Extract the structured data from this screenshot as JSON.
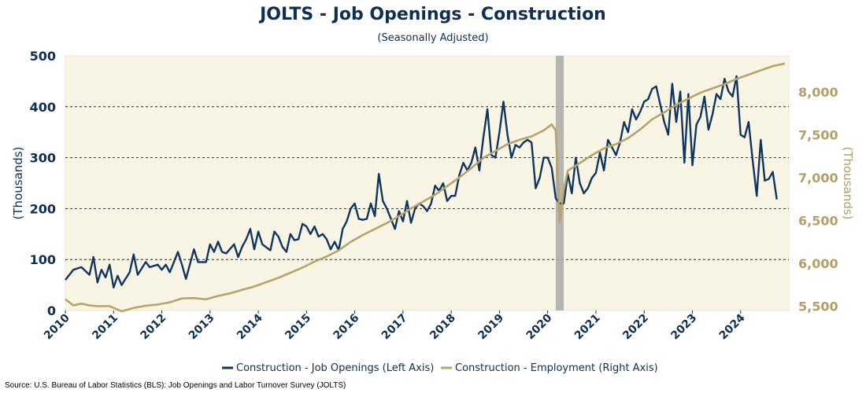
{
  "header": {
    "title": "JOLTS - Job Openings - Construction",
    "subtitle": "(Seasonally Adjusted)"
  },
  "footer": {
    "source": "Source: U.S. Bureau of Labor Statistics (BLS): Job Openings and Labor Turnover Survey (JOLTS)"
  },
  "colors": {
    "openings": "#0f3560",
    "employment": "#b8a36c",
    "plot_background": "#f8f5e4",
    "recession_band": "#a9a9a9",
    "left_axis_text": "#0f2f52",
    "right_axis_text": "#b59f68"
  },
  "chart_data": {
    "type": "line",
    "title": "JOLTS - Job Openings - Construction",
    "subtitle": "(Seasonally Adjusted)",
    "ylabel_left": "(Thousands)",
    "ylabel_right": "(Thousands)",
    "ylim_left": [
      0,
      500
    ],
    "ylim_right": [
      5450,
      8420
    ],
    "x_range": [
      "2010-01",
      "2025-01"
    ],
    "left_ticks": [
      "0",
      "100",
      "200",
      "300",
      "400",
      "500"
    ],
    "right_ticks": [
      "5,500",
      "6,000",
      "6,500",
      "7,000",
      "7,500",
      "8,000"
    ],
    "x_ticks": [
      "2010",
      "2011",
      "2012",
      "2013",
      "2014",
      "2015",
      "2016",
      "2017",
      "2018",
      "2019",
      "2020",
      "2021",
      "2022",
      "2023",
      "2024"
    ],
    "gridlines": "horizontal dashed at left-axis ticks",
    "legend_position": "bottom-center",
    "recession_shading": {
      "start": "2020-03",
      "end": "2020-05"
    },
    "series": [
      {
        "name": "Construction - Job Openings (Left Axis)",
        "axis": "left",
        "points": [
          [
            "2010-01",
            60
          ],
          [
            "2010-03",
            80
          ],
          [
            "2010-05",
            85
          ],
          [
            "2010-07",
            70
          ],
          [
            "2010-08",
            105
          ],
          [
            "2010-09",
            55
          ],
          [
            "2010-10",
            80
          ],
          [
            "2010-11",
            65
          ],
          [
            "2010-12",
            90
          ],
          [
            "2011-01",
            45
          ],
          [
            "2011-02",
            68
          ],
          [
            "2011-03",
            50
          ],
          [
            "2011-05",
            75
          ],
          [
            "2011-06",
            110
          ],
          [
            "2011-07",
            70
          ],
          [
            "2011-09",
            95
          ],
          [
            "2011-10",
            85
          ],
          [
            "2011-12",
            90
          ],
          [
            "2012-01",
            80
          ],
          [
            "2012-02",
            90
          ],
          [
            "2012-03",
            75
          ],
          [
            "2012-05",
            115
          ],
          [
            "2012-06",
            90
          ],
          [
            "2012-07",
            62
          ],
          [
            "2012-09",
            120
          ],
          [
            "2012-10",
            95
          ],
          [
            "2012-12",
            95
          ],
          [
            "2013-01",
            130
          ],
          [
            "2013-02",
            115
          ],
          [
            "2013-03",
            135
          ],
          [
            "2013-04",
            115
          ],
          [
            "2013-05",
            112
          ],
          [
            "2013-07",
            130
          ],
          [
            "2013-08",
            105
          ],
          [
            "2013-09",
            125
          ],
          [
            "2013-10",
            140
          ],
          [
            "2013-11",
            160
          ],
          [
            "2013-12",
            120
          ],
          [
            "2014-01",
            155
          ],
          [
            "2014-02",
            130
          ],
          [
            "2014-04",
            118
          ],
          [
            "2014-05",
            155
          ],
          [
            "2014-06",
            145
          ],
          [
            "2014-07",
            125
          ],
          [
            "2014-08",
            115
          ],
          [
            "2014-09",
            150
          ],
          [
            "2014-10",
            138
          ],
          [
            "2014-11",
            140
          ],
          [
            "2014-12",
            170
          ],
          [
            "2015-01",
            165
          ],
          [
            "2015-02",
            150
          ],
          [
            "2015-03",
            165
          ],
          [
            "2015-04",
            145
          ],
          [
            "2015-05",
            150
          ],
          [
            "2015-06",
            140
          ],
          [
            "2015-07",
            120
          ],
          [
            "2015-08",
            135
          ],
          [
            "2015-09",
            118
          ],
          [
            "2015-10",
            160
          ],
          [
            "2015-11",
            175
          ],
          [
            "2015-12",
            200
          ],
          [
            "2016-01",
            210
          ],
          [
            "2016-02",
            180
          ],
          [
            "2016-03",
            178
          ],
          [
            "2016-04",
            180
          ],
          [
            "2016-05",
            210
          ],
          [
            "2016-06",
            185
          ],
          [
            "2016-07",
            268
          ],
          [
            "2016-08",
            215
          ],
          [
            "2016-09",
            200
          ],
          [
            "2016-10",
            180
          ],
          [
            "2016-11",
            160
          ],
          [
            "2016-12",
            195
          ],
          [
            "2017-01",
            175
          ],
          [
            "2017-02",
            215
          ],
          [
            "2017-03",
            172
          ],
          [
            "2017-04",
            200
          ],
          [
            "2017-05",
            210
          ],
          [
            "2017-06",
            205
          ],
          [
            "2017-07",
            195
          ],
          [
            "2017-08",
            210
          ],
          [
            "2017-09",
            245
          ],
          [
            "2017-10",
            235
          ],
          [
            "2017-11",
            250
          ],
          [
            "2017-12",
            215
          ],
          [
            "2018-01",
            225
          ],
          [
            "2018-02",
            225
          ],
          [
            "2018-03",
            265
          ],
          [
            "2018-04",
            290
          ],
          [
            "2018-05",
            275
          ],
          [
            "2018-06",
            290
          ],
          [
            "2018-07",
            320
          ],
          [
            "2018-08",
            275
          ],
          [
            "2018-09",
            340
          ],
          [
            "2018-10",
            395
          ],
          [
            "2018-11",
            305
          ],
          [
            "2018-12",
            300
          ],
          [
            "2019-01",
            350
          ],
          [
            "2019-02",
            410
          ],
          [
            "2019-03",
            345
          ],
          [
            "2019-04",
            300
          ],
          [
            "2019-05",
            325
          ],
          [
            "2019-06",
            320
          ],
          [
            "2019-07",
            330
          ],
          [
            "2019-08",
            335
          ],
          [
            "2019-09",
            330
          ],
          [
            "2019-10",
            240
          ],
          [
            "2019-11",
            260
          ],
          [
            "2019-12",
            300
          ],
          [
            "2020-01",
            300
          ],
          [
            "2020-02",
            280
          ],
          [
            "2020-03",
            220
          ],
          [
            "2020-04",
            210
          ],
          [
            "2020-05",
            210
          ],
          [
            "2020-06",
            268
          ],
          [
            "2020-07",
            230
          ],
          [
            "2020-08",
            300
          ],
          [
            "2020-09",
            250
          ],
          [
            "2020-10",
            230
          ],
          [
            "2020-11",
            240
          ],
          [
            "2020-12",
            260
          ],
          [
            "2021-01",
            270
          ],
          [
            "2021-02",
            310
          ],
          [
            "2021-03",
            275
          ],
          [
            "2021-04",
            335
          ],
          [
            "2021-05",
            320
          ],
          [
            "2021-06",
            305
          ],
          [
            "2021-07",
            330
          ],
          [
            "2021-08",
            370
          ],
          [
            "2021-09",
            350
          ],
          [
            "2021-10",
            395
          ],
          [
            "2021-11",
            375
          ],
          [
            "2021-12",
            390
          ],
          [
            "2022-01",
            410
          ],
          [
            "2022-02",
            415
          ],
          [
            "2022-03",
            435
          ],
          [
            "2022-04",
            440
          ],
          [
            "2022-05",
            405
          ],
          [
            "2022-06",
            370
          ],
          [
            "2022-07",
            345
          ],
          [
            "2022-08",
            445
          ],
          [
            "2022-09",
            370
          ],
          [
            "2022-10",
            430
          ],
          [
            "2022-11",
            290
          ],
          [
            "2022-12",
            425
          ],
          [
            "2023-01",
            285
          ],
          [
            "2023-02",
            365
          ],
          [
            "2023-03",
            380
          ],
          [
            "2023-04",
            420
          ],
          [
            "2023-05",
            355
          ],
          [
            "2023-06",
            385
          ],
          [
            "2023-07",
            425
          ],
          [
            "2023-08",
            415
          ],
          [
            "2023-09",
            455
          ],
          [
            "2023-10",
            430
          ],
          [
            "2023-11",
            420
          ],
          [
            "2023-12",
            460
          ],
          [
            "2024-01",
            345
          ],
          [
            "2024-02",
            340
          ],
          [
            "2024-03",
            370
          ],
          [
            "2024-04",
            295
          ],
          [
            "2024-05",
            225
          ],
          [
            "2024-06",
            335
          ],
          [
            "2024-07",
            255
          ],
          [
            "2024-08",
            258
          ],
          [
            "2024-09",
            272
          ],
          [
            "2024-10",
            218
          ]
        ]
      },
      {
        "name": "Construction - Employment (Right Axis)",
        "axis": "right",
        "points": [
          [
            "2010-01",
            5580
          ],
          [
            "2010-03",
            5510
          ],
          [
            "2010-05",
            5530
          ],
          [
            "2010-07",
            5510
          ],
          [
            "2010-09",
            5500
          ],
          [
            "2010-12",
            5500
          ],
          [
            "2011-01",
            5480
          ],
          [
            "2011-03",
            5440
          ],
          [
            "2011-06",
            5480
          ],
          [
            "2011-09",
            5505
          ],
          [
            "2011-12",
            5520
          ],
          [
            "2012-03",
            5545
          ],
          [
            "2012-06",
            5590
          ],
          [
            "2012-09",
            5595
          ],
          [
            "2012-12",
            5580
          ],
          [
            "2013-03",
            5620
          ],
          [
            "2013-06",
            5650
          ],
          [
            "2013-09",
            5690
          ],
          [
            "2013-12",
            5730
          ],
          [
            "2014-03",
            5780
          ],
          [
            "2014-06",
            5830
          ],
          [
            "2014-09",
            5890
          ],
          [
            "2014-12",
            5950
          ],
          [
            "2015-03",
            6020
          ],
          [
            "2015-06",
            6080
          ],
          [
            "2015-09",
            6150
          ],
          [
            "2015-12",
            6250
          ],
          [
            "2016-03",
            6330
          ],
          [
            "2016-06",
            6400
          ],
          [
            "2016-09",
            6470
          ],
          [
            "2016-12",
            6550
          ],
          [
            "2017-03",
            6640
          ],
          [
            "2017-06",
            6720
          ],
          [
            "2017-09",
            6800
          ],
          [
            "2017-12",
            6900
          ],
          [
            "2018-03",
            7000
          ],
          [
            "2018-06",
            7110
          ],
          [
            "2018-09",
            7230
          ],
          [
            "2018-12",
            7310
          ],
          [
            "2019-03",
            7390
          ],
          [
            "2019-06",
            7440
          ],
          [
            "2019-09",
            7480
          ],
          [
            "2019-12",
            7550
          ],
          [
            "2020-02",
            7620
          ],
          [
            "2020-03",
            7550
          ],
          [
            "2020-04",
            6480
          ],
          [
            "2020-05",
            6850
          ],
          [
            "2020-06",
            7080
          ],
          [
            "2020-09",
            7170
          ],
          [
            "2020-12",
            7260
          ],
          [
            "2021-03",
            7340
          ],
          [
            "2021-06",
            7390
          ],
          [
            "2021-09",
            7460
          ],
          [
            "2021-12",
            7560
          ],
          [
            "2022-03",
            7680
          ],
          [
            "2022-06",
            7760
          ],
          [
            "2022-09",
            7850
          ],
          [
            "2022-12",
            7920
          ],
          [
            "2023-03",
            7990
          ],
          [
            "2023-06",
            8040
          ],
          [
            "2023-09",
            8090
          ],
          [
            "2023-12",
            8150
          ],
          [
            "2024-03",
            8200
          ],
          [
            "2024-06",
            8250
          ],
          [
            "2024-09",
            8300
          ],
          [
            "2024-12",
            8330
          ]
        ]
      }
    ]
  }
}
